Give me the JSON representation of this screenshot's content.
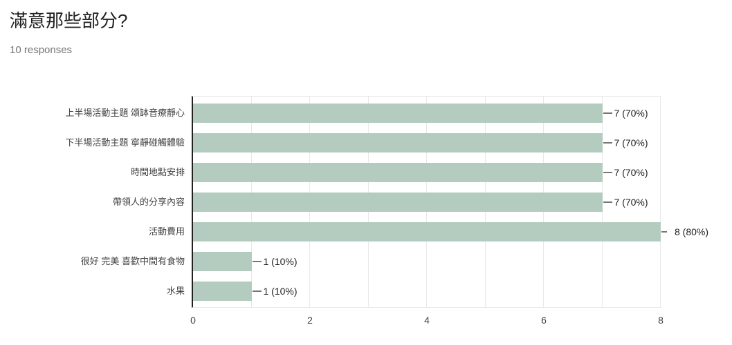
{
  "header": {
    "title": "滿意那些部分?",
    "subtitle": "10 responses"
  },
  "chart_data": {
    "type": "bar",
    "orientation": "horizontal",
    "title": "滿意那些部分?",
    "subtitle": "10 responses",
    "total_responses": 10,
    "categories": [
      "上半場活動主題 頌缽音療靜心",
      "下半場活動主題 寧靜碰觸體驗",
      "時間地點安排",
      "帶領人的分享內容",
      "活動費用",
      "很好 完美 喜歡中間有食物",
      "水果"
    ],
    "values": [
      7,
      7,
      7,
      7,
      8,
      1,
      1
    ],
    "value_labels": [
      "7 (70%)",
      "7 (70%)",
      "7 (70%)",
      "7 (70%)",
      "8 (80%)",
      "1 (10%)",
      "1 (10%)"
    ],
    "x_ticks": [
      "0",
      "2",
      "4",
      "6",
      "8"
    ],
    "xlim": [
      0,
      8
    ],
    "grid_interval": 1,
    "legend": "none",
    "bar_color": "#b4ccbf",
    "axis_color": "#212121",
    "gridline_color": "#e8e8e8"
  }
}
